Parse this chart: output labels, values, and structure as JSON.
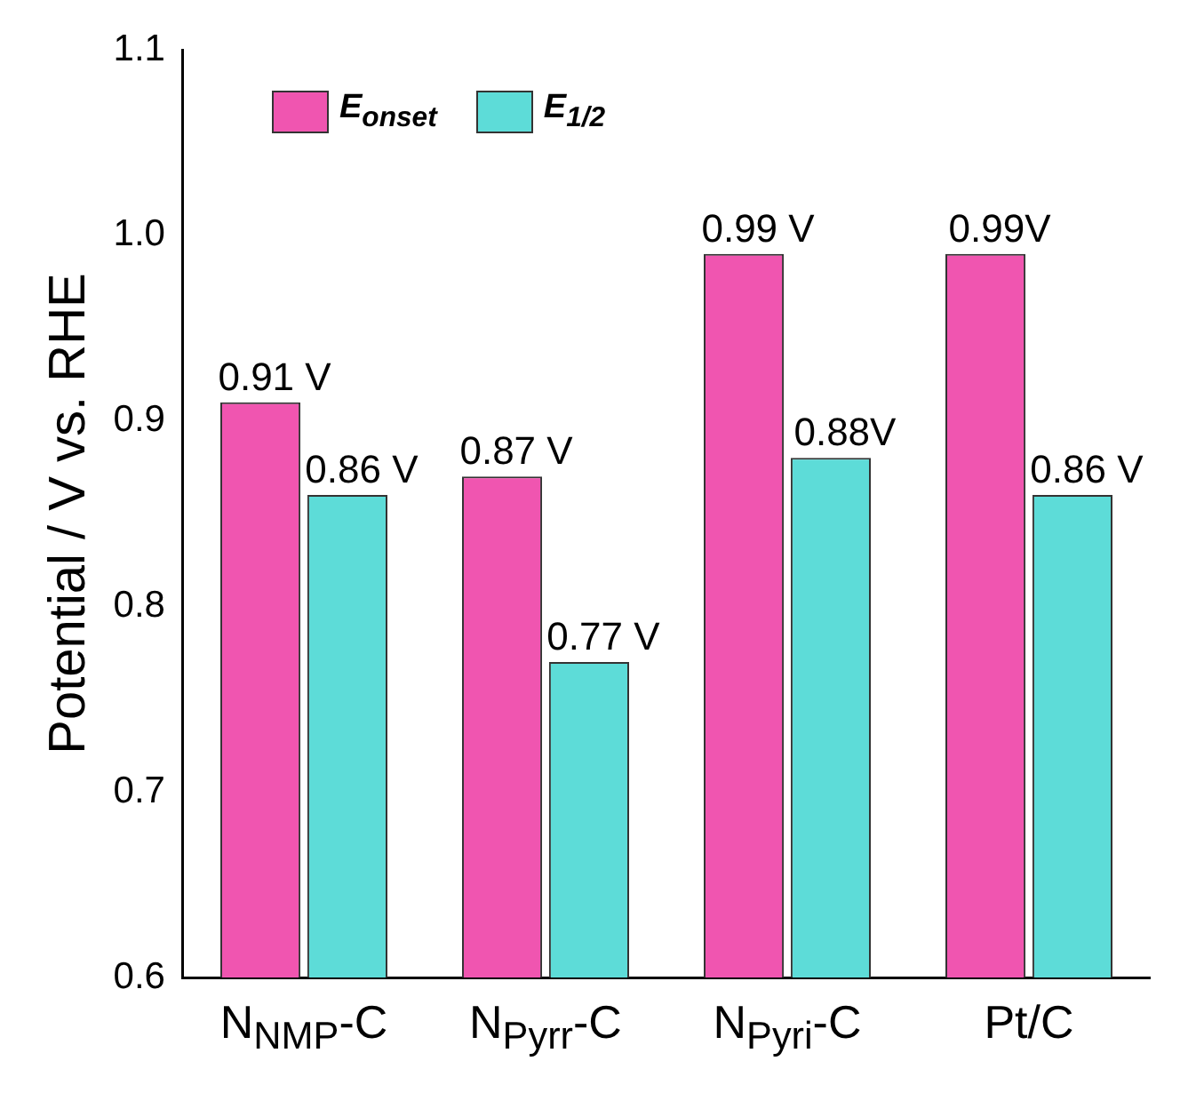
{
  "chart_data": {
    "type": "bar",
    "ylabel": "Potential / V vs. RHE",
    "categories": [
      "N$_{NMP}$-C",
      "N$_{Pyrr}$-C",
      "N$_{Pyri}$-C",
      "Pt/C"
    ],
    "series": [
      {
        "name": "E$_{onset}$",
        "color": "#f055b0",
        "values": [
          0.91,
          0.87,
          0.99,
          0.99
        ],
        "value_labels": [
          "0.91 V",
          "0.87 V",
          "0.99 V",
          "0.99V"
        ]
      },
      {
        "name": "E$_{1/2}$",
        "color": "#5ddcd8",
        "values": [
          0.86,
          0.77,
          0.88,
          0.86
        ],
        "value_labels": [
          "0.86 V",
          "0.77 V",
          "0.88V",
          "0.86 V"
        ]
      }
    ],
    "ylim": [
      0.6,
      1.1
    ],
    "yticks": [
      0.6,
      0.7,
      0.8,
      0.9,
      {
        "value": 1,
        "label": "1.0"
      },
      1.1
    ],
    "grid": false,
    "legend": "top left"
  }
}
